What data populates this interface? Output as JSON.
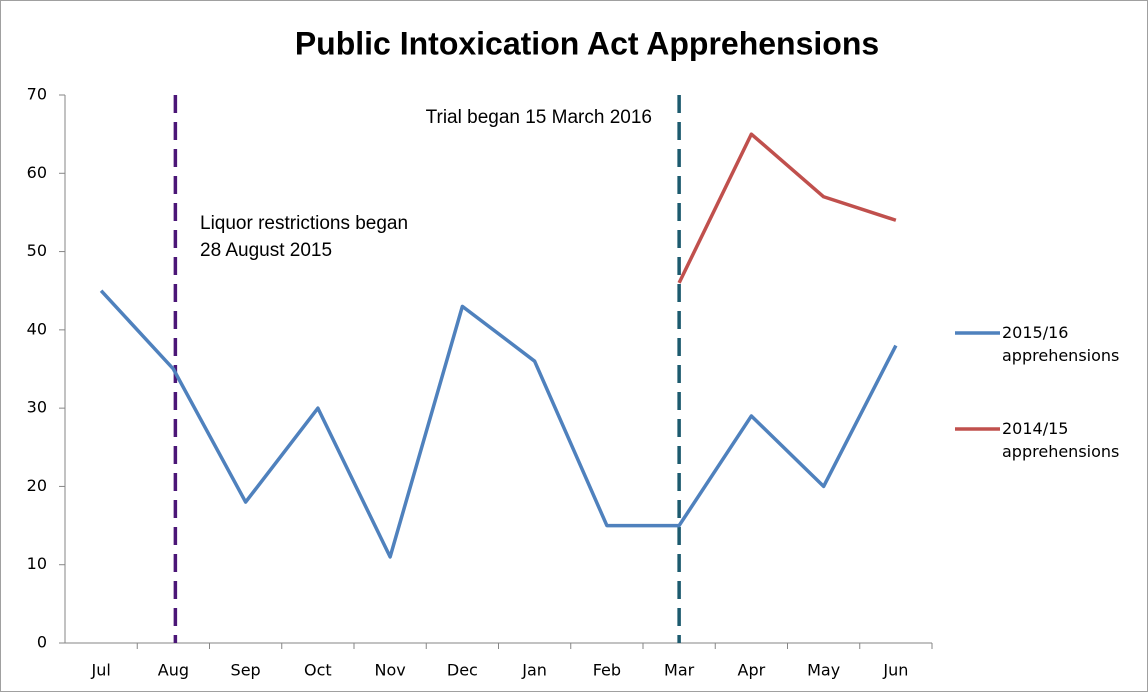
{
  "chart_data": {
    "type": "line",
    "title": "Public Intoxication Act Apprehensions",
    "categories": [
      "Jul",
      "Aug",
      "Sep",
      "Oct",
      "Nov",
      "Dec",
      "Jan",
      "Feb",
      "Mar",
      "Apr",
      "May",
      "Jun"
    ],
    "series": [
      {
        "name": "2015/16 apprehensions",
        "color": "#4f81bd",
        "values": [
          45,
          35,
          18,
          30,
          11,
          43,
          36,
          15,
          15,
          29,
          20,
          38
        ]
      },
      {
        "name": "2014/15 apprehensions",
        "color": "#c0504d",
        "values": [
          null,
          null,
          null,
          null,
          null,
          null,
          null,
          null,
          46,
          65,
          57,
          54
        ]
      }
    ],
    "ylim": [
      0,
      70
    ],
    "yticks": [
      0,
      10,
      20,
      30,
      40,
      50,
      60,
      70
    ],
    "grid": false,
    "legend": "right",
    "annotations": [
      {
        "lines": [
          "Liquor restrictions began",
          "28 August 2015"
        ],
        "color": "#4b1677"
      },
      {
        "lines": [
          "Trial began 15 March 2016"
        ],
        "color": "#1c5a6e"
      }
    ]
  }
}
